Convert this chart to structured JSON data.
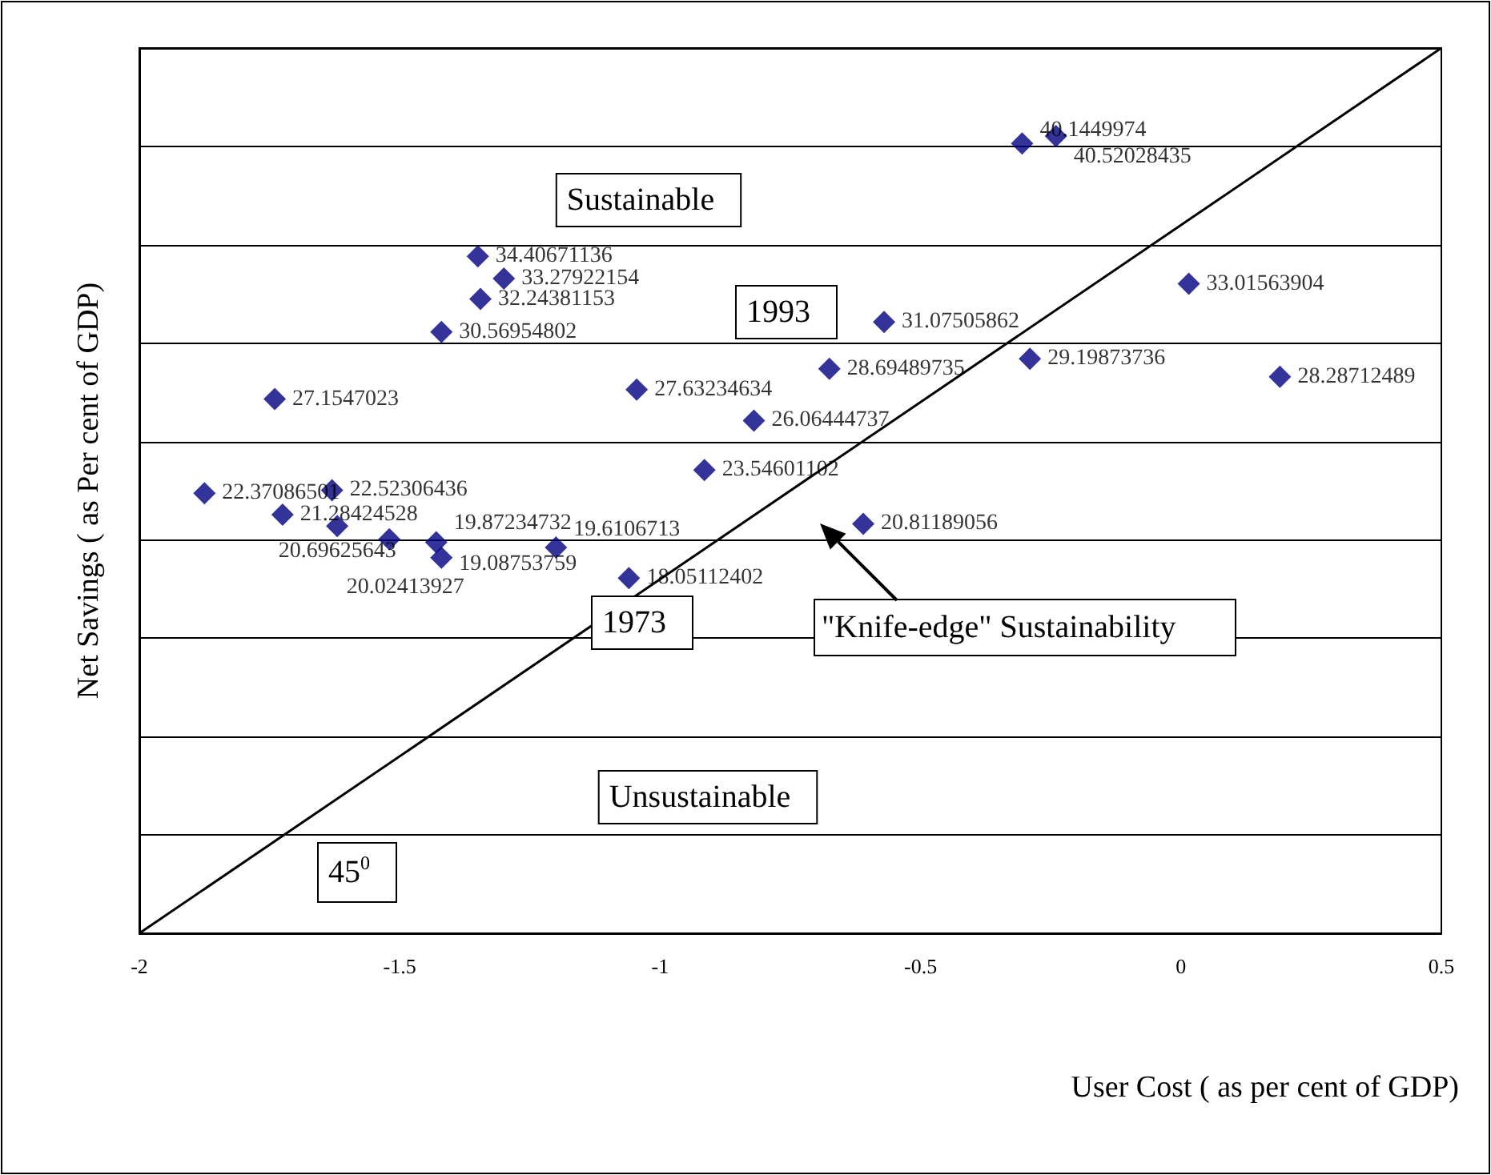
{
  "chart_data": {
    "type": "scatter",
    "xlabel": "User Cost ( as per cent of GDP)",
    "ylabel": "Net Savings ( as Per cent of GDP)",
    "xlim": [
      -2,
      0.5
    ],
    "xticks": [
      -2,
      -1.5,
      -1,
      -0.5,
      0,
      0.5
    ],
    "ylim": [
      0,
      45
    ],
    "yticks": [
      {
        "value": 0,
        "label": null
      },
      {
        "value": 5,
        "label": null
      },
      {
        "value": 10,
        "label": null
      },
      {
        "value": 15,
        "label": null
      },
      {
        "value": 20,
        "label": null
      },
      {
        "value": 25,
        "label": null
      },
      {
        "value": 30,
        "label": null
      },
      {
        "value": 35,
        "label": null
      },
      {
        "value": 40,
        "label": null
      },
      {
        "value": 45,
        "label": null
      }
    ],
    "tick_labels": "x",
    "grid": "y",
    "marker": "diamond",
    "series": [
      {
        "type": "scatter",
        "color": "#000080",
        "x": [
          -0.305,
          -0.24,
          -1.35,
          -1.3,
          -1.345,
          -1.42,
          0.015,
          -0.57,
          -0.29,
          -0.675,
          0.19,
          -1.74,
          -1.045,
          -0.82,
          -0.915,
          -1.875,
          -1.63,
          -1.725,
          -0.61,
          -1.43,
          -1.42,
          -1.62,
          -1.52,
          -1.2,
          -1.06
        ],
        "values": [
          40.1449974,
          40.52028435,
          34.40671136,
          33.27922154,
          32.24381153,
          30.56954802,
          33.01563904,
          31.07505862,
          29.19873736,
          28.69489735,
          28.28712489,
          27.1547023,
          27.63234634,
          26.06444737,
          23.54601102,
          22.37086501,
          22.52306436,
          21.28424528,
          20.81189056,
          19.87234732,
          19.08753759,
          20.69625643,
          20.02413927,
          19.6106713,
          18.05112402
        ],
        "value_labels": [
          "40.1449974",
          "40.52028435",
          "34.40671136",
          "33.27922154",
          "32.24381153",
          "30.56954802",
          "33.01563904",
          "31.07505862",
          "29.19873736",
          "28.69489735",
          "28.28712489",
          "27.1547023",
          "27.63234634",
          "26.06444737",
          "23.54601102",
          "22.37086501",
          "22.52306436",
          "21.28424528",
          "20.81189056",
          "19.87234732",
          "19.08753759",
          "20.69625643",
          "20.02413927",
          "19.6106713",
          "18.05112402"
        ]
      },
      {
        "type": "line",
        "color": "#000000",
        "marker": "none",
        "x": [
          -2,
          0.5
        ],
        "values": [
          0,
          45
        ]
      }
    ],
    "annotations": [
      "Sustainable",
      "1993",
      "1973",
      "\"Knife-edge\" Sustainability",
      "Unsustainable",
      "45$^{0}$"
    ]
  }
}
